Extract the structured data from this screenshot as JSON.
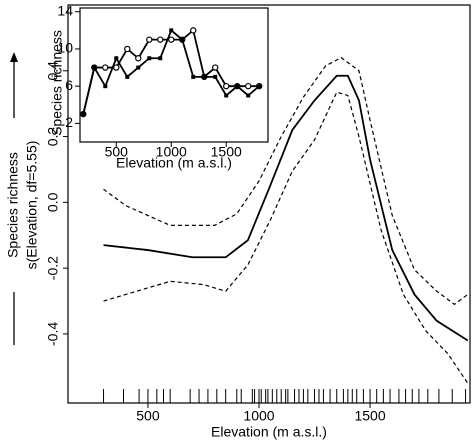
{
  "chart_data": [
    {
      "type": "line",
      "xlabel": "Elevation (m a.s.l.)",
      "ylabel": "Species richness",
      "ylabel2": "s(Elevation, df=5.55)",
      "xlim": [
        140,
        1950
      ],
      "xticks": [
        500,
        1000,
        1500
      ],
      "ylim": [
        -0.61,
        0.6
      ],
      "yticks": [
        -0.4,
        -0.2,
        {
          "value": 0,
          "label": "0.0"
        },
        0.2,
        0.4
      ],
      "series": [
        {
          "color": "#000000",
          "dashed": false,
          "x": [
            300,
            500,
            700,
            850,
            950,
            1050,
            1150,
            1250,
            1350,
            1400,
            1450,
            1500,
            1600,
            1700,
            1800,
            1940
          ],
          "values": [
            -0.13,
            -0.145,
            -0.167,
            -0.167,
            -0.115,
            0.05,
            0.22,
            0.31,
            0.385,
            0.385,
            0.31,
            0.13,
            -0.145,
            -0.28,
            -0.36,
            -0.42
          ]
        },
        {
          "color": "#000000",
          "dashed": true,
          "x": [
            300,
            400,
            600,
            800,
            900,
            1000,
            1100,
            1200,
            1300,
            1370,
            1450,
            1500,
            1600,
            1700,
            1800,
            1880,
            1940
          ],
          "values": [
            0.04,
            -0.01,
            -0.07,
            -0.07,
            -0.035,
            0.065,
            0.2,
            0.32,
            0.415,
            0.44,
            0.4,
            0.25,
            -0.04,
            -0.205,
            -0.27,
            -0.31,
            -0.28
          ]
        },
        {
          "color": "#000000",
          "dashed": true,
          "x": [
            300,
            450,
            600,
            750,
            850,
            950,
            1050,
            1150,
            1250,
            1350,
            1400,
            1450,
            1550,
            1650,
            1750,
            1850,
            1940
          ],
          "values": [
            -0.3,
            -0.27,
            -0.24,
            -0.25,
            -0.27,
            -0.19,
            -0.055,
            0.095,
            0.19,
            0.335,
            0.325,
            0.2,
            -0.085,
            -0.28,
            -0.39,
            -0.46,
            -0.55
          ]
        }
      ],
      "rug": [
        300,
        390,
        460,
        500,
        540,
        570,
        600,
        690,
        730,
        770,
        810,
        850,
        900,
        920,
        970,
        980,
        1000,
        1010,
        1030,
        1040,
        1060,
        1080,
        1100,
        1120,
        1130,
        1160,
        1180,
        1200,
        1220,
        1250,
        1270,
        1290,
        1320,
        1350,
        1380,
        1400,
        1420,
        1440,
        1470,
        1500,
        1530,
        1560,
        1590,
        1630,
        1660,
        1690,
        1720,
        1760,
        1810,
        1870,
        1930
      ]
    },
    {
      "type": "line",
      "xlabel": "Elevation (m a.s.l.)",
      "ylabel": "Species richness",
      "xlim": [
        170,
        1880
      ],
      "xticks": [
        500,
        1000,
        1500
      ],
      "ylim": [
        0,
        14.4
      ],
      "yticks": [
        2,
        6,
        10,
        14
      ],
      "x": [
        200,
        300,
        400,
        500,
        600,
        700,
        800,
        900,
        1000,
        1100,
        1200,
        1300,
        1400,
        1500,
        1600,
        1700,
        1800
      ],
      "series": [
        {
          "color": "#000000",
          "marker": "open",
          "values": [
            3,
            8,
            8,
            8,
            10,
            9,
            11,
            11,
            11,
            11,
            12,
            7,
            8,
            6,
            6,
            6,
            6
          ]
        },
        {
          "color": "#000000",
          "marker": "filled",
          "values": [
            3,
            8,
            6,
            9,
            7,
            8,
            9,
            9,
            12,
            11,
            7,
            7,
            7,
            5,
            6,
            5,
            6
          ]
        }
      ]
    }
  ]
}
